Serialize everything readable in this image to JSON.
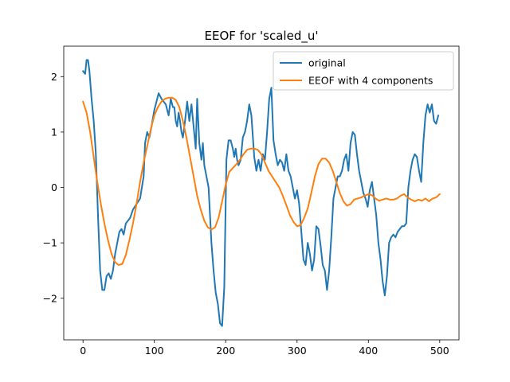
{
  "chart_data": {
    "type": "line",
    "title": "EEOF for 'scaled_u'",
    "xlabel": "",
    "ylabel": "",
    "xlim": [
      -27,
      527
    ],
    "ylim": [
      -2.75,
      2.55
    ],
    "xticks": [
      0,
      100,
      200,
      300,
      400,
      500
    ],
    "xtick_labels": [
      "0",
      "100",
      "200",
      "300",
      "400",
      "500"
    ],
    "yticks": [
      -2,
      -1,
      0,
      1,
      2
    ],
    "ytick_labels": [
      "−2",
      "−1",
      "0",
      "1",
      "2"
    ],
    "grid": false,
    "legend_position": "top-right",
    "series": [
      {
        "name": "original",
        "color": "#1f77b4",
        "x": [
          0,
          3,
          5,
          7,
          9,
          12,
          15,
          18,
          21,
          24,
          27,
          30,
          33,
          36,
          39,
          42,
          45,
          48,
          51,
          54,
          57,
          60,
          63,
          66,
          70,
          75,
          80,
          85,
          87,
          90,
          93,
          96,
          100,
          103,
          106,
          110,
          113,
          116,
          120,
          123,
          126,
          128,
          130,
          132,
          134,
          136,
          138,
          140,
          143,
          146,
          149,
          152,
          155,
          158,
          160,
          163,
          166,
          168,
          170,
          173,
          176,
          178,
          180,
          183,
          186,
          189,
          192,
          195,
          198,
          201,
          204,
          207,
          210,
          212,
          214,
          216,
          218,
          221,
          224,
          227,
          230,
          233,
          236,
          240,
          243,
          246,
          249,
          252,
          255,
          258,
          261,
          264,
          267,
          270,
          273,
          276,
          279,
          282,
          285,
          288,
          291,
          294,
          297,
          300,
          303,
          306,
          309,
          312,
          315,
          318,
          321,
          324,
          327,
          330,
          333,
          336,
          339,
          342,
          345,
          348,
          351,
          354,
          357,
          360,
          363,
          366,
          369,
          372,
          375,
          378,
          381,
          384,
          387,
          390,
          393,
          396,
          399,
          402,
          405,
          408,
          411,
          414,
          417,
          420,
          423,
          426,
          429,
          432,
          435,
          438,
          441,
          444,
          447,
          450,
          453,
          456,
          459,
          462,
          465,
          468,
          471,
          474,
          477,
          480,
          483,
          486,
          489,
          492,
          495,
          498
        ],
        "y": [
          2.1,
          2.05,
          2.3,
          2.3,
          2.1,
          1.6,
          1.2,
          0.6,
          -0.5,
          -1.5,
          -1.85,
          -1.85,
          -1.6,
          -1.55,
          -1.65,
          -1.5,
          -1.2,
          -1.0,
          -0.8,
          -0.75,
          -0.85,
          -0.65,
          -0.6,
          -0.55,
          -0.4,
          -0.3,
          -0.2,
          0.2,
          0.8,
          1.0,
          0.9,
          1.1,
          1.4,
          1.55,
          1.7,
          1.6,
          1.55,
          1.5,
          1.3,
          1.6,
          1.45,
          1.45,
          1.2,
          1.1,
          1.35,
          1.2,
          1.0,
          0.9,
          1.2,
          1.55,
          1.2,
          1.5,
          1.1,
          0.7,
          1.6,
          0.8,
          0.5,
          0.8,
          0.4,
          0.2,
          0.0,
          -0.5,
          -1.0,
          -1.5,
          -1.9,
          -2.1,
          -2.45,
          -2.5,
          -1.8,
          0.5,
          0.85,
          0.85,
          0.7,
          0.55,
          0.7,
          0.5,
          0.4,
          0.5,
          0.9,
          1.0,
          1.2,
          1.5,
          1.3,
          0.55,
          0.3,
          0.5,
          0.3,
          0.6,
          0.5,
          1.0,
          1.6,
          1.8,
          0.85,
          0.6,
          0.4,
          0.5,
          0.45,
          0.3,
          0.6,
          0.3,
          0.2,
          0.0,
          -0.2,
          -0.05,
          -0.3,
          -0.8,
          -1.3,
          -1.4,
          -1.0,
          -1.2,
          -1.5,
          -1.3,
          -0.7,
          -0.75,
          -1.05,
          -1.4,
          -1.5,
          -1.85,
          -1.5,
          -0.9,
          -0.2,
          0.0,
          0.2,
          0.2,
          0.3,
          0.5,
          0.6,
          0.3,
          0.8,
          1.0,
          0.95,
          0.6,
          0.3,
          0.1,
          -0.1,
          -0.2,
          -0.35,
          -0.05,
          0.1,
          -0.2,
          -0.5,
          -1.0,
          -1.3,
          -1.7,
          -1.95,
          -1.6,
          -1.0,
          -0.9,
          -0.85,
          -0.9,
          -0.8,
          -0.75,
          -0.7,
          -0.7,
          -0.65,
          0.0,
          0.3,
          0.5,
          0.6,
          0.55,
          0.3,
          0.1,
          0.8,
          1.3,
          1.5,
          1.35,
          1.5,
          1.2,
          1.15,
          1.3
        ]
      },
      {
        "name": "EEOF with 4 components",
        "color": "#ff7f0e",
        "x": [
          0,
          5,
          10,
          15,
          20,
          25,
          30,
          35,
          40,
          45,
          50,
          55,
          60,
          65,
          70,
          75,
          80,
          85,
          90,
          95,
          100,
          105,
          110,
          115,
          120,
          125,
          130,
          135,
          140,
          145,
          150,
          155,
          160,
          165,
          170,
          175,
          180,
          185,
          190,
          195,
          200,
          205,
          210,
          215,
          220,
          225,
          230,
          235,
          240,
          245,
          250,
          255,
          260,
          265,
          270,
          275,
          280,
          285,
          290,
          295,
          300,
          305,
          310,
          315,
          320,
          325,
          330,
          335,
          340,
          345,
          350,
          355,
          360,
          365,
          370,
          375,
          380,
          385,
          390,
          395,
          400,
          405,
          410,
          415,
          420,
          425,
          430,
          435,
          440,
          445,
          450,
          455,
          460,
          465,
          470,
          475,
          480,
          485,
          490,
          495,
          500
        ],
        "y": [
          1.55,
          1.35,
          1.0,
          0.55,
          0.1,
          -0.3,
          -0.65,
          -0.95,
          -1.2,
          -1.35,
          -1.4,
          -1.38,
          -1.22,
          -0.95,
          -0.65,
          -0.3,
          0.1,
          0.45,
          0.75,
          1.05,
          1.3,
          1.45,
          1.55,
          1.6,
          1.62,
          1.62,
          1.58,
          1.45,
          1.2,
          0.9,
          0.55,
          0.2,
          -0.15,
          -0.4,
          -0.6,
          -0.72,
          -0.76,
          -0.72,
          -0.55,
          -0.25,
          0.05,
          0.28,
          0.35,
          0.42,
          0.5,
          0.6,
          0.68,
          0.7,
          0.7,
          0.68,
          0.6,
          0.45,
          0.3,
          0.2,
          0.1,
          0.0,
          -0.15,
          -0.32,
          -0.5,
          -0.62,
          -0.7,
          -0.68,
          -0.55,
          -0.38,
          -0.1,
          0.2,
          0.42,
          0.52,
          0.52,
          0.45,
          0.3,
          0.1,
          -0.1,
          -0.25,
          -0.33,
          -0.3,
          -0.22,
          -0.2,
          -0.18,
          -0.15,
          -0.12,
          -0.14,
          -0.2,
          -0.24,
          -0.22,
          -0.2,
          -0.22,
          -0.22,
          -0.2,
          -0.15,
          -0.12,
          -0.18,
          -0.22,
          -0.25,
          -0.22,
          -0.24,
          -0.2,
          -0.25,
          -0.2,
          -0.18,
          -0.12
        ]
      }
    ]
  }
}
